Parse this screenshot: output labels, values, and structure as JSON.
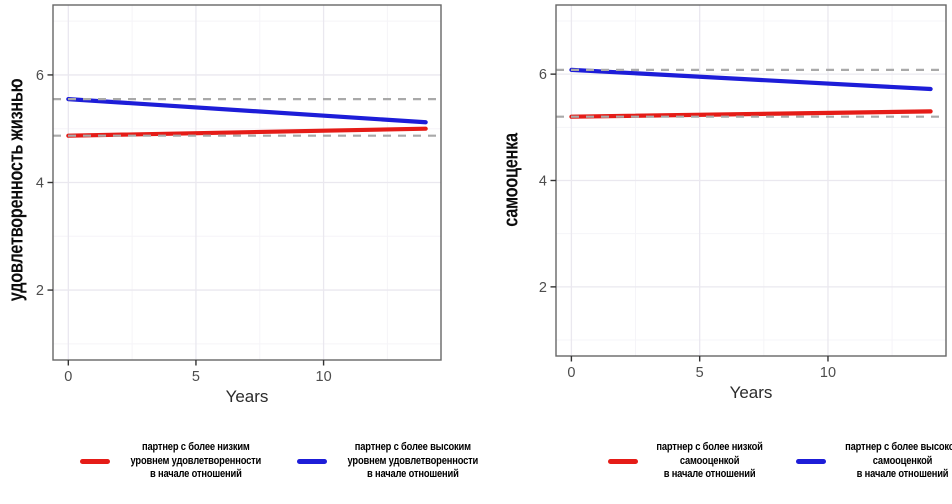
{
  "theme": {
    "background": "#ffffff",
    "panel_border": "#666666",
    "grid_major": "#eae8ef",
    "grid_minor": "#f5f4f8",
    "tick_color": "#333333",
    "tick_label_color": "#4d4d4d",
    "axis_title_color": "#2b2b2b",
    "reference_line_color": "#a9a9a9",
    "red": "#e51c17",
    "blue": "#1d1dd8"
  },
  "chart_data": [
    {
      "type": "line",
      "title": "",
      "xlabel": "Years",
      "ylabel": "удовлетворенность жизнью",
      "xlim": [
        -0.6,
        14.6
      ],
      "ylim": [
        0.7,
        7.3
      ],
      "x_ticks": [
        0,
        5,
        10
      ],
      "y_ticks": [
        2,
        4,
        6
      ],
      "x_minor_gridlines": [
        2.5,
        7.5,
        12.5
      ],
      "y_minor_gridlines": [
        1,
        3,
        5,
        7
      ],
      "grid": true,
      "legend_position": "bottom",
      "series": [
        {
          "name": "партнер с более низким уровнем удовлетворенности в начале отношений",
          "color": "#e51c17",
          "x": [
            0,
            14
          ],
          "y": [
            4.87,
            5.0
          ],
          "baseline": 4.87,
          "baseline_style": "dashed"
        },
        {
          "name": "партнер с более высоким уровнем удовлетворенности в начале отношений",
          "color": "#1d1dd8",
          "x": [
            0,
            14
          ],
          "y": [
            5.55,
            5.12
          ],
          "baseline": 5.55,
          "baseline_style": "dashed"
        }
      ],
      "legend": [
        {
          "color": "#e51c17",
          "label_lines": [
            "партнер с более низким",
            "уровнем удовлетворенности",
            "в начале отношений"
          ]
        },
        {
          "color": "#1d1dd8",
          "label_lines": [
            "партнер с более высоким",
            "уровнем удовлетворенности",
            "в начале отношений"
          ]
        }
      ]
    },
    {
      "type": "line",
      "title": "",
      "xlabel": "Years",
      "ylabel": "самооценка",
      "xlim": [
        -0.6,
        14.6
      ],
      "ylim": [
        0.7,
        7.3
      ],
      "x_ticks": [
        0,
        5,
        10
      ],
      "y_ticks": [
        2,
        4,
        6
      ],
      "x_minor_gridlines": [
        2.5,
        7.5,
        12.5
      ],
      "y_minor_gridlines": [
        1,
        3,
        5,
        7
      ],
      "grid": true,
      "legend_position": "bottom",
      "series": [
        {
          "name": "партнер с более низкой самооценкой в начале отношений",
          "color": "#e51c17",
          "x": [
            0,
            14
          ],
          "y": [
            5.2,
            5.3
          ],
          "baseline": 5.2,
          "baseline_style": "dashed"
        },
        {
          "name": "партнер с более высокой самооценкой в начале отношений",
          "color": "#1d1dd8",
          "x": [
            0,
            14
          ],
          "y": [
            6.08,
            5.72
          ],
          "baseline": 6.08,
          "baseline_style": "dashed"
        }
      ],
      "legend": [
        {
          "color": "#e51c17",
          "label_lines": [
            "партнер с более низкой",
            "самооценкой",
            "в начале отношений"
          ]
        },
        {
          "color": "#1d1dd8",
          "label_lines": [
            "партнер с более высокой",
            "самооценкой",
            "в начале отношений"
          ]
        }
      ]
    }
  ]
}
